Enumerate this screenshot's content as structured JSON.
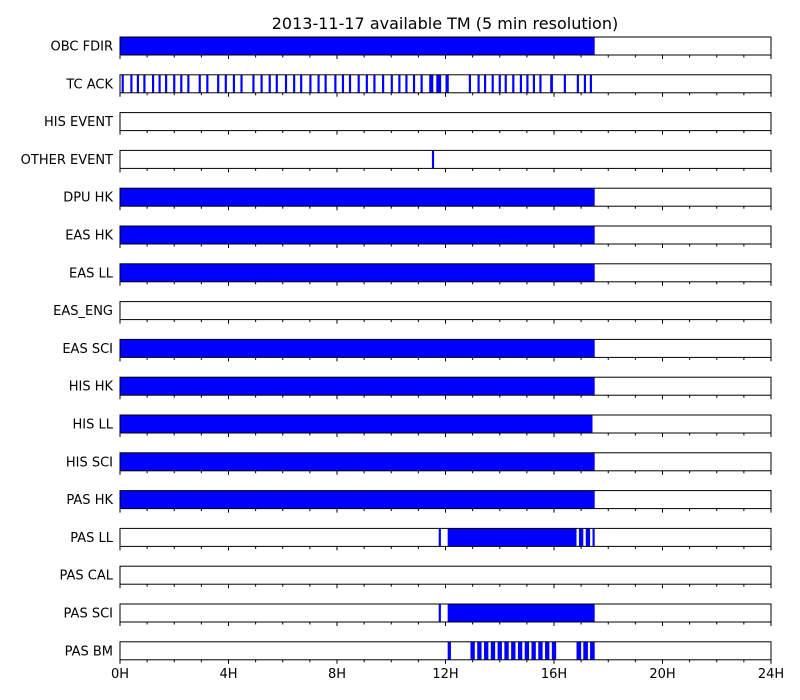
{
  "colors": {
    "bar": "#0000ff",
    "frame": "#000000",
    "background": "#ffffff"
  },
  "chart_data": {
    "type": "bar",
    "subtype": "availability-timeline",
    "title": "2013-11-17 available TM (5 min resolution)",
    "x_unit": "hours",
    "xlim": [
      0,
      24
    ],
    "x_ticks": [
      0,
      4,
      8,
      12,
      16,
      20,
      24
    ],
    "x_tick_labels": [
      "0H",
      "4H",
      "8H",
      "12H",
      "16H",
      "20H",
      "24H"
    ],
    "x_minor_tick_step": 1,
    "grid": false,
    "rows": [
      {
        "label": "OBC FDIR",
        "intervals": [
          [
            0.0,
            17.5
          ]
        ]
      },
      {
        "label": "TC ACK",
        "intervals": [
          [
            0.06,
            0.14
          ],
          [
            0.38,
            0.46
          ],
          [
            0.62,
            0.7
          ],
          [
            0.86,
            0.94
          ],
          [
            1.18,
            1.26
          ],
          [
            1.42,
            1.5
          ],
          [
            1.66,
            1.74
          ],
          [
            1.96,
            2.04
          ],
          [
            2.22,
            2.3
          ],
          [
            2.48,
            2.56
          ],
          [
            2.9,
            2.98
          ],
          [
            3.18,
            3.26
          ],
          [
            3.58,
            3.66
          ],
          [
            3.86,
            3.94
          ],
          [
            4.16,
            4.24
          ],
          [
            4.44,
            4.52
          ],
          [
            4.88,
            4.96
          ],
          [
            5.18,
            5.26
          ],
          [
            5.48,
            5.56
          ],
          [
            5.74,
            5.82
          ],
          [
            6.08,
            6.16
          ],
          [
            6.38,
            6.46
          ],
          [
            6.64,
            6.72
          ],
          [
            6.98,
            7.06
          ],
          [
            7.28,
            7.36
          ],
          [
            7.54,
            7.62
          ],
          [
            7.9,
            7.98
          ],
          [
            8.18,
            8.26
          ],
          [
            8.44,
            8.52
          ],
          [
            8.76,
            8.84
          ],
          [
            9.06,
            9.14
          ],
          [
            9.34,
            9.42
          ],
          [
            9.66,
            9.74
          ],
          [
            9.98,
            10.06
          ],
          [
            10.26,
            10.34
          ],
          [
            10.52,
            10.6
          ],
          [
            10.8,
            10.88
          ],
          [
            11.08,
            11.16
          ],
          [
            11.4,
            11.55
          ],
          [
            11.66,
            11.84
          ],
          [
            12.0,
            12.12
          ],
          [
            12.86,
            12.94
          ],
          [
            13.18,
            13.26
          ],
          [
            13.42,
            13.5
          ],
          [
            13.7,
            13.78
          ],
          [
            13.96,
            14.04
          ],
          [
            14.18,
            14.26
          ],
          [
            14.46,
            14.54
          ],
          [
            14.74,
            14.82
          ],
          [
            14.98,
            15.06
          ],
          [
            15.22,
            15.3
          ],
          [
            15.46,
            15.54
          ],
          [
            15.86,
            15.96
          ],
          [
            16.36,
            16.44
          ],
          [
            16.84,
            16.92
          ],
          [
            17.1,
            17.18
          ],
          [
            17.32,
            17.4
          ]
        ]
      },
      {
        "label": "HIS EVENT",
        "intervals": []
      },
      {
        "label": "OTHER EVENT",
        "intervals": [
          [
            11.5,
            11.58
          ]
        ]
      },
      {
        "label": "DPU HK",
        "intervals": [
          [
            0.0,
            17.5
          ]
        ]
      },
      {
        "label": "EAS HK",
        "intervals": [
          [
            0.0,
            17.5
          ]
        ]
      },
      {
        "label": "EAS LL",
        "intervals": [
          [
            0.0,
            17.5
          ]
        ]
      },
      {
        "label": "EAS_ENG",
        "intervals": []
      },
      {
        "label": "EAS SCI",
        "intervals": [
          [
            0.0,
            17.5
          ]
        ]
      },
      {
        "label": "HIS HK",
        "intervals": [
          [
            0.0,
            17.5
          ]
        ]
      },
      {
        "label": "HIS LL",
        "intervals": [
          [
            0.0,
            17.42
          ]
        ]
      },
      {
        "label": "HIS SCI",
        "intervals": [
          [
            0.0,
            17.5
          ]
        ]
      },
      {
        "label": "PAS HK",
        "intervals": [
          [
            0.0,
            17.5
          ]
        ]
      },
      {
        "label": "PAS LL",
        "intervals": [
          [
            11.75,
            11.83
          ],
          [
            12.08,
            16.83
          ],
          [
            16.92,
            17.08
          ],
          [
            17.17,
            17.33
          ],
          [
            17.42,
            17.5
          ]
        ]
      },
      {
        "label": "PAS CAL",
        "intervals": []
      },
      {
        "label": "PAS SCI",
        "intervals": [
          [
            11.75,
            11.83
          ],
          [
            12.08,
            17.5
          ]
        ]
      },
      {
        "label": "PAS BM",
        "intervals": [
          [
            12.08,
            12.2
          ],
          [
            12.92,
            13.08
          ],
          [
            13.17,
            13.33
          ],
          [
            13.42,
            13.58
          ],
          [
            13.67,
            13.83
          ],
          [
            13.92,
            14.08
          ],
          [
            14.17,
            14.33
          ],
          [
            14.42,
            14.58
          ],
          [
            14.67,
            14.83
          ],
          [
            14.92,
            15.08
          ],
          [
            15.17,
            15.33
          ],
          [
            15.42,
            15.58
          ],
          [
            15.67,
            15.83
          ],
          [
            15.92,
            16.08
          ],
          [
            16.83,
            17.0
          ],
          [
            17.08,
            17.25
          ],
          [
            17.33,
            17.5
          ]
        ]
      }
    ]
  }
}
